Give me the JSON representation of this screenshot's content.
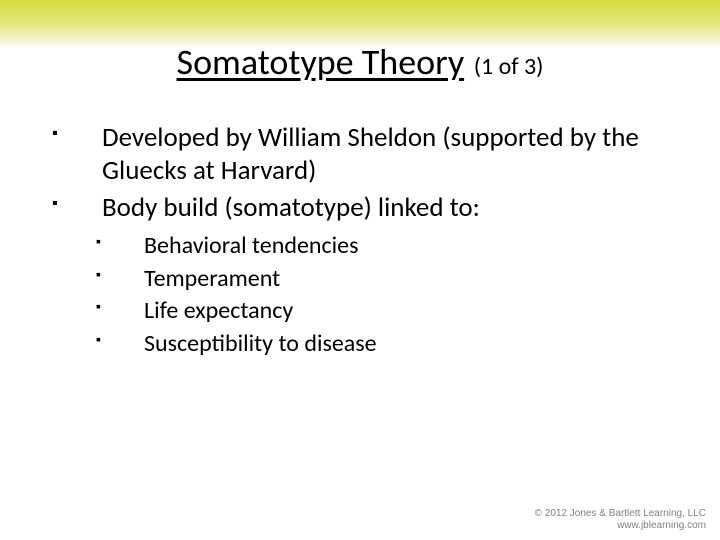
{
  "colors": {
    "band_top": "#d5d93a",
    "band_mid": "#e8ea8f",
    "band_fade": "#f5f5d8",
    "background": "#ffffff",
    "text": "#000000",
    "footer_text": "#808080"
  },
  "title": {
    "main": "Somatotype Theory",
    "sub": "(1 of 3)",
    "main_fontsize": 36,
    "sub_fontsize": 24,
    "underline": true
  },
  "bullets": {
    "level1": [
      "Developed by William Sheldon (supported by the Gluecks at Harvard)",
      "Body build (somatotype) linked to:"
    ],
    "level2_parent_index": 1,
    "level2": [
      "Behavioral tendencies",
      "Temperament",
      "Life expectancy",
      "Susceptibility to disease"
    ],
    "level1_fontsize": 27,
    "level2_fontsize": 24,
    "bullet_glyph": "▪"
  },
  "footer": {
    "line1": "© 2012 Jones & Bartlett Learning, LLC",
    "line2": "www.jblearning.com",
    "fontsize": 10
  }
}
